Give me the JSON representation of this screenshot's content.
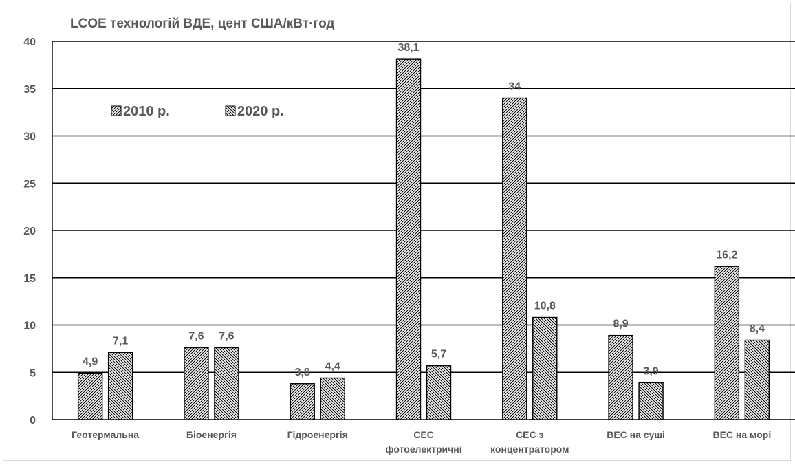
{
  "chart_data": {
    "type": "bar",
    "title": "LCOE технологій ВДЕ, цент США/кВт·год",
    "xlabel": "",
    "ylabel": "",
    "ylim": [
      0,
      40
    ],
    "yticks": [
      "0",
      "5",
      "10",
      "15",
      "20",
      "25",
      "30",
      "35",
      "40"
    ],
    "grid": true,
    "legend": "top-left",
    "categories": [
      [
        "Геотермальна"
      ],
      [
        "Біоенергія"
      ],
      [
        "Гідроенергія"
      ],
      [
        "СЕС",
        "фотоелектричні"
      ],
      [
        "СЕС з",
        "концентратором"
      ],
      [
        "ВЕС на суші"
      ],
      [
        "ВЕС на морі"
      ]
    ],
    "series": [
      {
        "name": "2010 р.",
        "values": [
          4.9,
          7.6,
          3.8,
          38.1,
          34,
          8.9,
          16.2
        ],
        "labels": [
          "4,9",
          "7,6",
          "3,8",
          "38,1",
          "34",
          "8,9",
          "16,2"
        ],
        "pattern": "hatch-forward"
      },
      {
        "name": "2020 р.",
        "values": [
          7.1,
          7.6,
          4.4,
          5.7,
          10.8,
          3.9,
          8.4
        ],
        "labels": [
          "7,1",
          "7,6",
          "4,4",
          "5,7",
          "10,8",
          "3,9",
          "8,4"
        ],
        "pattern": "hatch-back"
      }
    ],
    "colors": {
      "text": "#595959",
      "gridline": "#000000",
      "bar_edge": "#000000",
      "bar_fill": "#ffffff"
    }
  }
}
